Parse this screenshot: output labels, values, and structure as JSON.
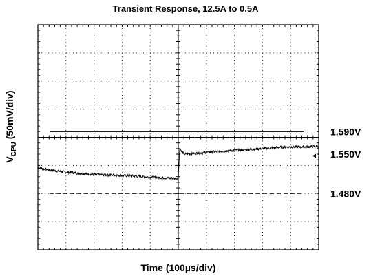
{
  "chart_data": {
    "type": "line",
    "title": "Transient Response, 12.5A to 0.5A",
    "xlabel": "Time (100",
    "xlabel_mu": "µ",
    "xlabel_tail": "s/div)",
    "ylabel_main": "V",
    "ylabel_sub": "CPU",
    "ylabel_tail": " (50mV/div)",
    "x_unit": "div",
    "y_unit": "V",
    "xlim": [
      0,
      10
    ],
    "ylim": [
      1.38,
      1.78
    ],
    "grid": true,
    "time_per_div": "100µs",
    "volts_per_div": 0.05,
    "step_time_div": 5.0,
    "reference_lines": [
      {
        "label": "1.590V",
        "value": 1.59,
        "style": "solid"
      },
      {
        "label": "1.550V",
        "value": 1.55,
        "style": "none"
      },
      {
        "label": "1.480V",
        "value": 1.48,
        "style": "dashed"
      }
    ],
    "trace_x": [
      0,
      0.5,
      1,
      1.5,
      2,
      2.5,
      3,
      3.5,
      4,
      4.5,
      4.95,
      5.0,
      5.05,
      5.2,
      5.5,
      6,
      6.5,
      7,
      7.5,
      8,
      8.5,
      9,
      9.5,
      10
    ],
    "trace_y": [
      1.526,
      1.521,
      1.518,
      1.516,
      1.514,
      1.513,
      1.512,
      1.511,
      1.509,
      1.508,
      1.507,
      1.507,
      1.56,
      1.55,
      1.551,
      1.553,
      1.555,
      1.557,
      1.558,
      1.56,
      1.562,
      1.563,
      1.563,
      1.564
    ],
    "marker_arrow_value": 1.547
  }
}
